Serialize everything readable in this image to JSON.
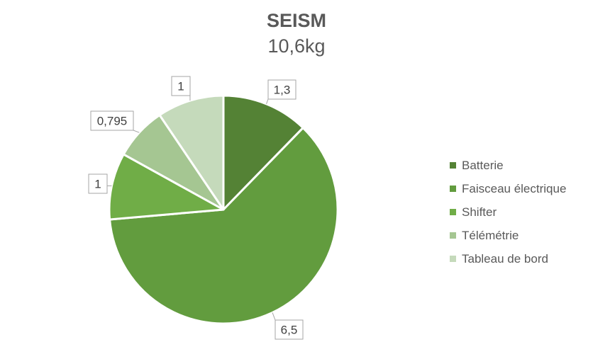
{
  "chart_data": {
    "type": "pie",
    "title": "SEISM",
    "subtitle": "10,6kg",
    "slices": [
      {
        "name": "Batterie",
        "value": 1.3,
        "label": "1,3",
        "color": "#548235"
      },
      {
        "name": "Faisceau électrique",
        "value": 6.5,
        "label": "6,5",
        "color": "#629c3e"
      },
      {
        "name": "Shifter",
        "value": 1,
        "label": "1",
        "color": "#70ad47"
      },
      {
        "name": "Télémétrie",
        "value": 0.795,
        "label": "0,795",
        "color": "#a5c692"
      },
      {
        "name": "Tableau de bord",
        "value": 1,
        "label": "1",
        "color": "#c5dabb"
      }
    ],
    "legend_position": "right",
    "data_labels": "callouts"
  }
}
